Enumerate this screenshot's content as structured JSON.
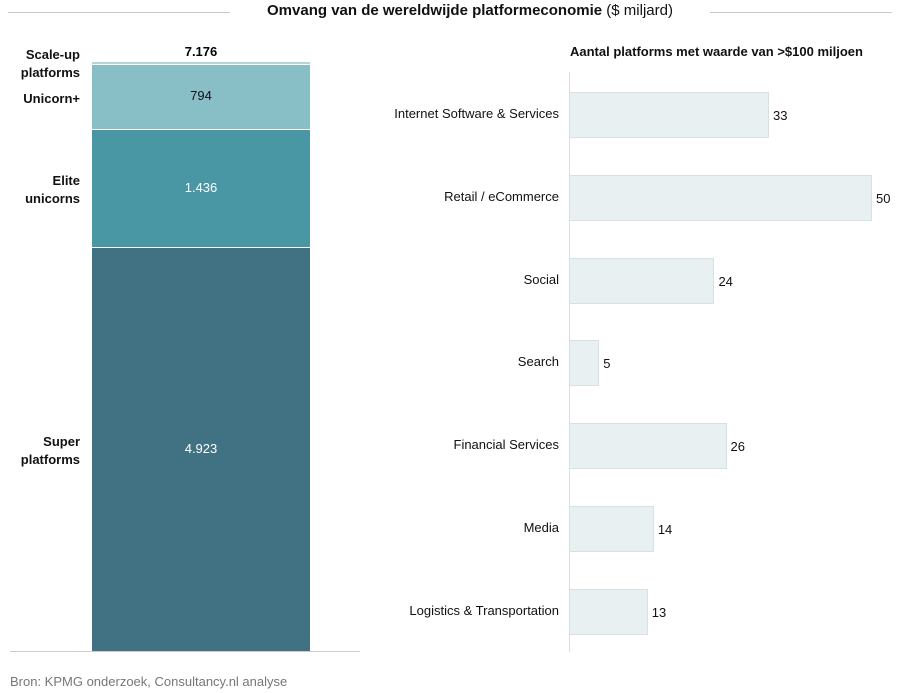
{
  "title_bold": "Omvang van de wereldwijde platformeconomie",
  "title_unit": "($ miljard)",
  "source": "Bron: KPMG onderzoek, Consultancy.nl analyse",
  "chart_data": [
    {
      "type": "bar",
      "stacked": true,
      "total_label": "7.176",
      "segments": [
        {
          "name": "Scale-up platforms",
          "value": 23,
          "label": "",
          "color": "#b8d4d9"
        },
        {
          "name": "Unicorn+",
          "value": 794,
          "label": "794",
          "color": "#88bec6"
        },
        {
          "name": "Elite unicorns",
          "value": 1436,
          "label": "1.436",
          "color": "#4997a5"
        },
        {
          "name": "Super platforms",
          "value": 4923,
          "label": "4.923",
          "color": "#417283"
        }
      ]
    },
    {
      "type": "bar",
      "orientation": "horizontal",
      "title": "Aantal platforms met waarde van >$100 miljoen",
      "categories": [
        "Internet Software & Services",
        "Retail / eCommerce",
        "Social",
        "Search",
        "Financial Services",
        "Media",
        "Logistics & Transportation"
      ],
      "values": [
        33,
        50,
        24,
        5,
        26,
        14,
        13
      ],
      "xlim": [
        0,
        50
      ],
      "color": "#e8f0f2"
    }
  ]
}
